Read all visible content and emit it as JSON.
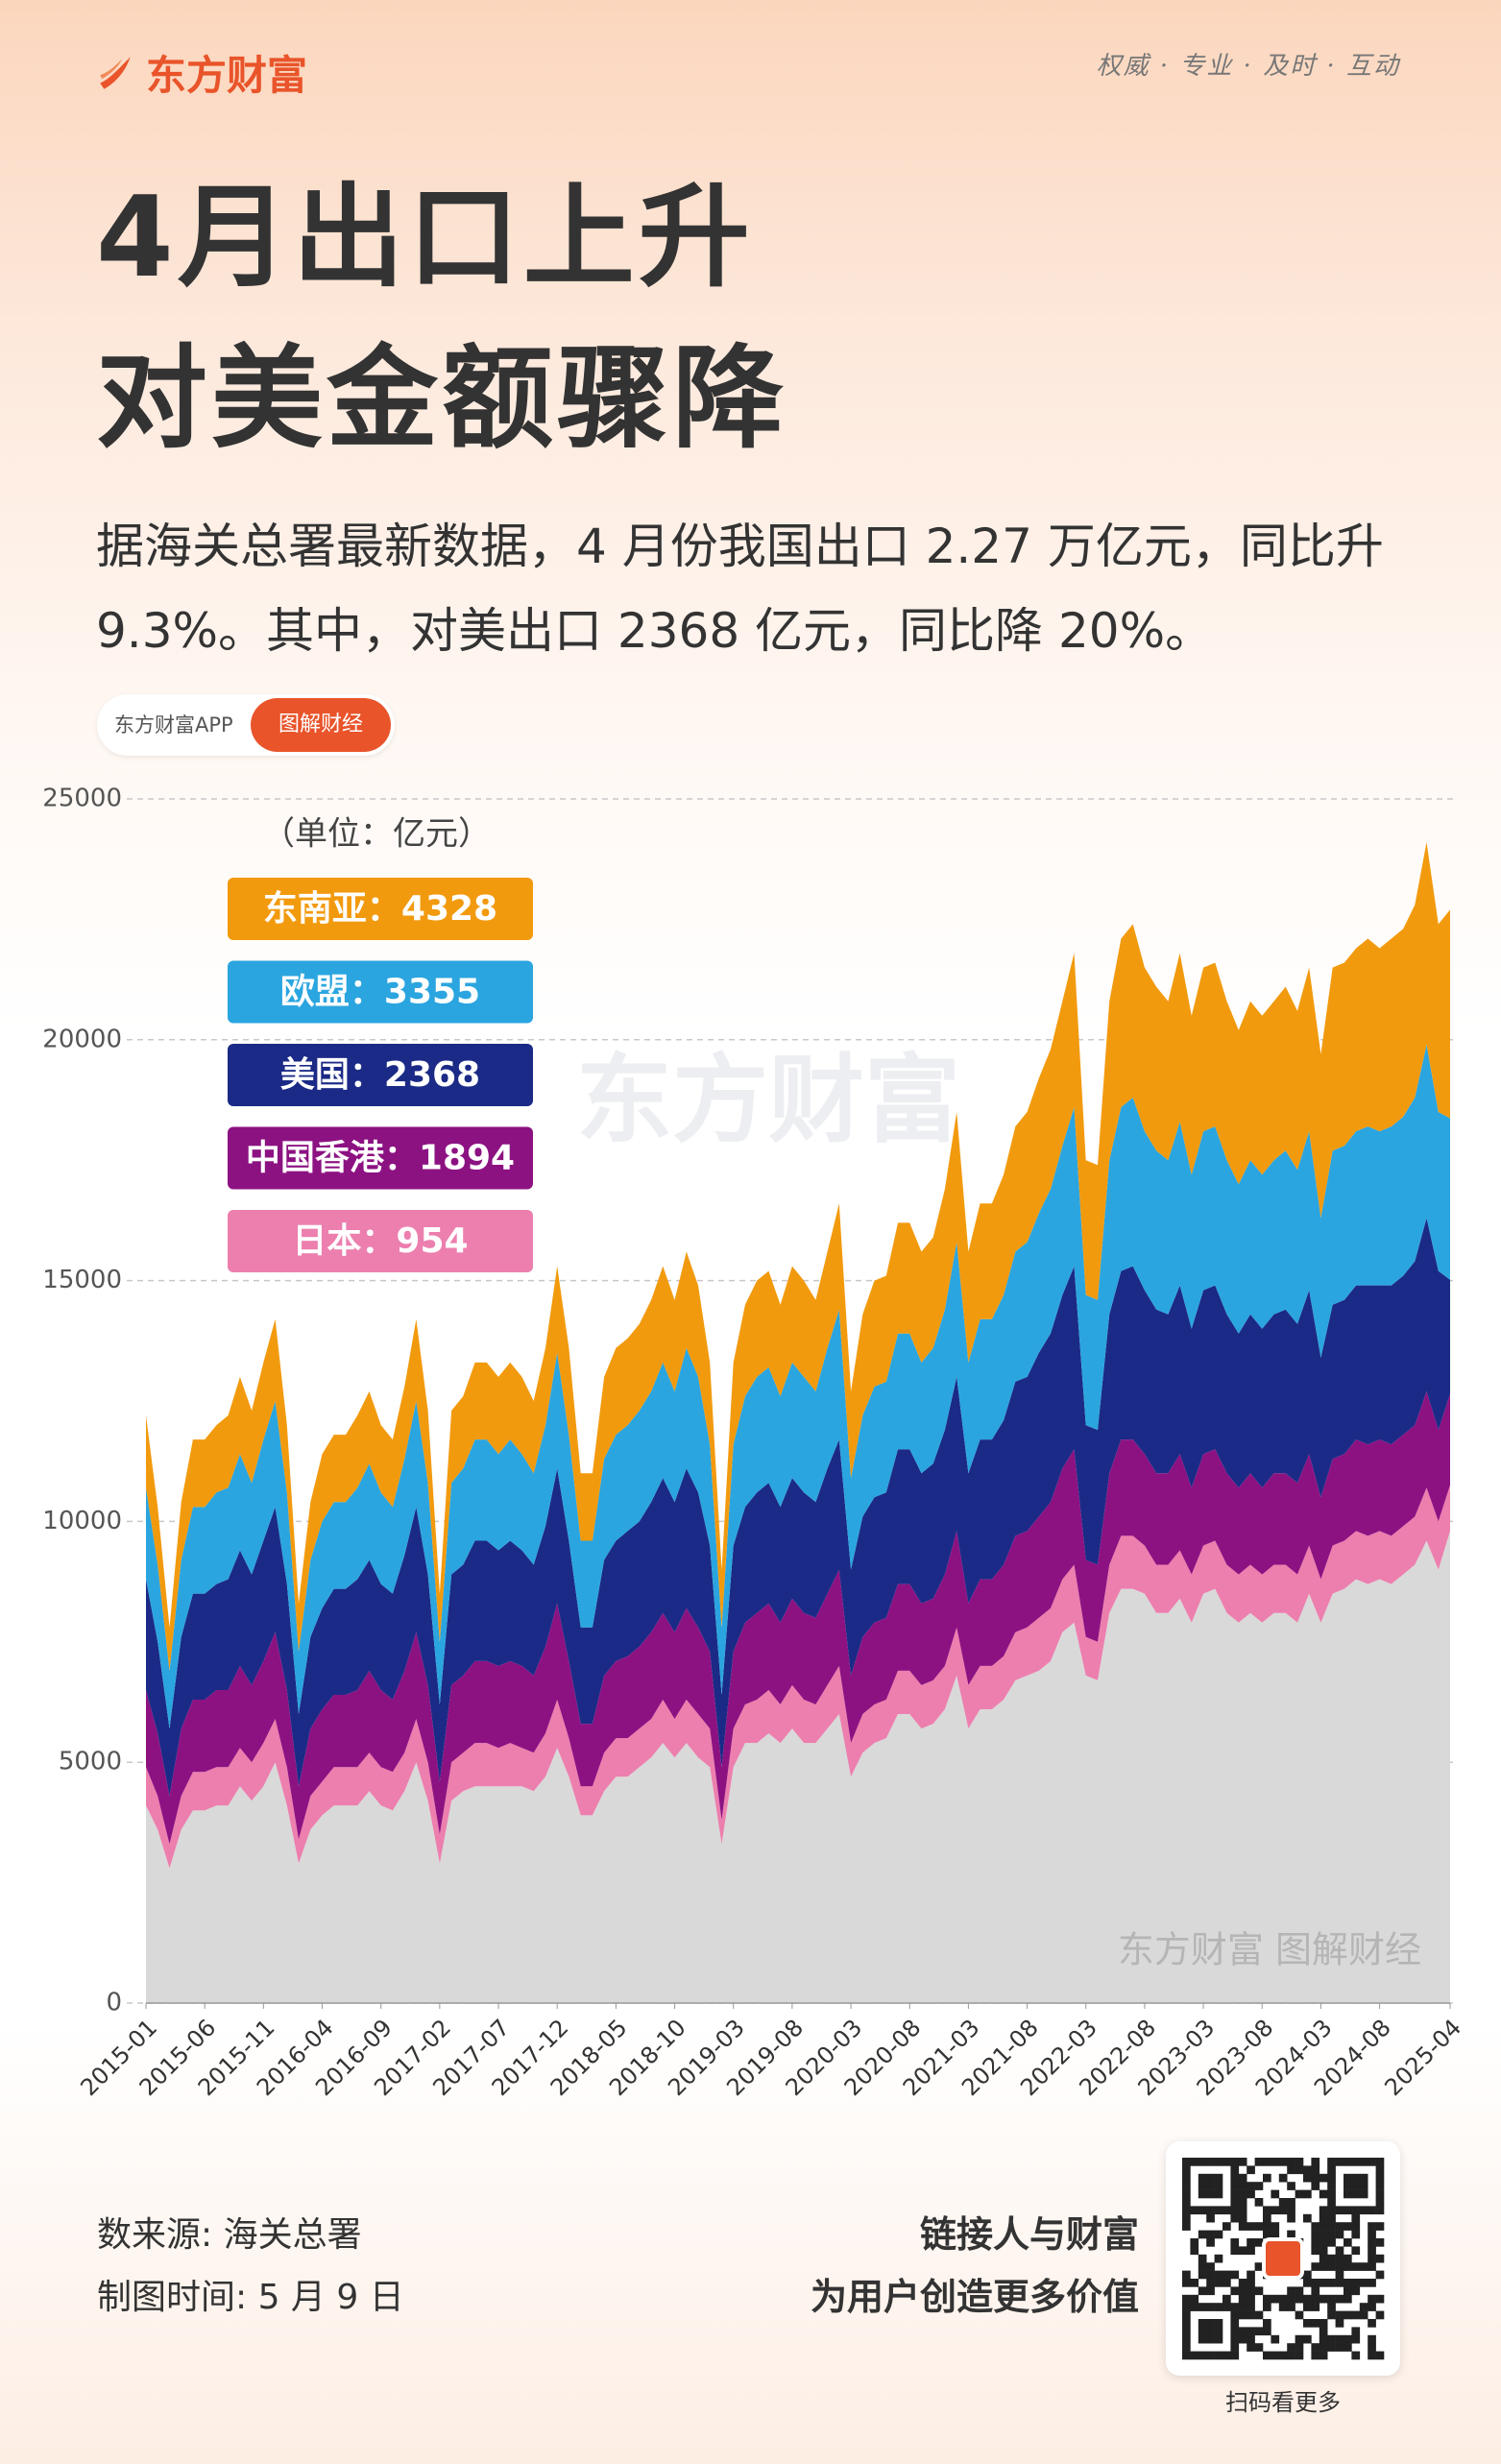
{
  "header": {
    "logo": "东方财富",
    "slogan": "权威 · 专业 · 及时 · 互动"
  },
  "title": [
    "4月出口上升",
    "对美金额骤降"
  ],
  "subtitle": "据海关总署最新数据，4 月份我国出口 2.27 万亿元，同比升 9.3%。其中，对美出口 2368 亿元，同比降 20%。",
  "tags": [
    "东方财富APP",
    "图解财经"
  ],
  "chart_data": {
    "type": "area",
    "stacked": true,
    "unit_label": "（单位：亿元）",
    "watermark": "东方财富",
    "credit": "东方财富 图解财经",
    "grid": true,
    "ylim": [
      0,
      25000
    ],
    "yticks": [
      0,
      5000,
      10000,
      15000,
      20000,
      25000
    ],
    "categories": [
      "2015-01",
      null,
      null,
      null,
      null,
      "2015-06",
      null,
      null,
      null,
      null,
      "2015-11",
      null,
      null,
      null,
      null,
      "2016-04",
      null,
      null,
      null,
      null,
      "2016-09",
      null,
      null,
      null,
      null,
      "2017-02",
      null,
      null,
      null,
      null,
      "2017-07",
      null,
      null,
      null,
      null,
      "2017-12",
      null,
      null,
      null,
      null,
      "2018-05",
      null,
      null,
      null,
      null,
      "2018-10",
      null,
      null,
      null,
      null,
      "2019-03",
      null,
      null,
      null,
      null,
      "2019-08",
      null,
      null,
      null,
      null,
      "2020-03",
      null,
      null,
      null,
      null,
      "2020-08",
      null,
      null,
      null,
      null,
      "2021-03",
      null,
      null,
      null,
      null,
      "2021-08",
      null,
      null,
      null,
      null,
      "2022-03",
      null,
      null,
      null,
      null,
      "2022-08",
      null,
      null,
      null,
      null,
      "2023-03",
      null,
      null,
      null,
      null,
      "2023-08",
      null,
      null,
      null,
      null,
      "2024-03",
      null,
      null,
      null,
      null,
      "2024-08",
      null,
      null,
      null,
      null,
      null,
      "2025-04"
    ],
    "series": [
      {
        "color": "#d9d9d9",
        "values": [
          4100,
          3600,
          2800,
          3600,
          4000,
          4000,
          4100,
          4100,
          4500,
          4200,
          4500,
          5000,
          4100,
          2900,
          3600,
          3900,
          4100,
          4100,
          4100,
          4400,
          4100,
          4000,
          4400,
          5000,
          4200,
          2900,
          4200,
          4400,
          4500,
          4500,
          4500,
          4500,
          4500,
          4400,
          4700,
          5300,
          4700,
          3900,
          3900,
          4400,
          4700,
          4700,
          4900,
          5100,
          5400,
          5100,
          5400,
          5100,
          4900,
          3300,
          4900,
          5400,
          5400,
          5600,
          5400,
          5700,
          5400,
          5400,
          5700,
          6000,
          4700,
          5200,
          5400,
          5500,
          6000,
          6000,
          5700,
          5800,
          6100,
          6800,
          5700,
          6100,
          6100,
          6300,
          6700,
          6800,
          6900,
          7100,
          7700,
          7900,
          6800,
          6700,
          8100,
          8600,
          8600,
          8500,
          8100,
          8100,
          8400,
          7900,
          8500,
          8600,
          8100,
          7900,
          8100,
          7900,
          8100,
          8100,
          7900,
          8500,
          7900,
          8500,
          8600,
          8800,
          8700,
          8800,
          8700,
          8900,
          9100,
          9600,
          9000,
          9801
        ]
      },
      {
        "name": "日本：954",
        "color": "#ec7fae",
        "values": [
          800,
          700,
          500,
          700,
          800,
          800,
          800,
          800,
          800,
          800,
          900,
          900,
          800,
          500,
          700,
          700,
          800,
          800,
          800,
          800,
          800,
          800,
          800,
          900,
          800,
          600,
          800,
          800,
          900,
          900,
          800,
          900,
          800,
          800,
          900,
          1000,
          800,
          600,
          600,
          800,
          800,
          800,
          800,
          800,
          900,
          800,
          900,
          900,
          800,
          500,
          800,
          800,
          900,
          900,
          800,
          900,
          900,
          800,
          900,
          1000,
          700,
          800,
          800,
          800,
          900,
          900,
          900,
          900,
          900,
          1000,
          900,
          900,
          900,
          900,
          1000,
          1000,
          1100,
          1100,
          1100,
          1200,
          800,
          800,
          1000,
          1100,
          1100,
          1000,
          1000,
          1000,
          1000,
          1000,
          1000,
          1000,
          1000,
          1000,
          1000,
          1000,
          1000,
          1000,
          1000,
          1000,
          900,
          1000,
          1000,
          1000,
          1000,
          1000,
          1000,
          1000,
          1000,
          1100,
          1000,
          954
        ]
      },
      {
        "name": "中国香港：1894",
        "color": "#8c1282",
        "values": [
          1600,
          1300,
          1000,
          1400,
          1500,
          1500,
          1600,
          1600,
          1700,
          1600,
          1700,
          1800,
          1600,
          1100,
          1400,
          1500,
          1500,
          1500,
          1600,
          1700,
          1600,
          1500,
          1700,
          1800,
          1600,
          1100,
          1600,
          1600,
          1700,
          1700,
          1700,
          1700,
          1700,
          1600,
          1800,
          2000,
          1600,
          1300,
          1300,
          1600,
          1600,
          1700,
          1700,
          1800,
          1800,
          1800,
          1900,
          1800,
          1600,
          1100,
          1600,
          1700,
          1800,
          1800,
          1700,
          1800,
          1800,
          1800,
          1900,
          2000,
          1400,
          1600,
          1700,
          1700,
          1800,
          1800,
          1700,
          1700,
          1900,
          2000,
          1700,
          1800,
          1800,
          1900,
          2000,
          2000,
          2100,
          2200,
          2300,
          2400,
          1600,
          1600,
          1900,
          2000,
          2000,
          1900,
          1900,
          1900,
          2000,
          1800,
          1900,
          1900,
          1900,
          1800,
          1900,
          1800,
          1900,
          1900,
          1900,
          1900,
          1700,
          1800,
          1800,
          1900,
          1900,
          1900,
          1900,
          1900,
          1900,
          2000,
          1900,
          1894
        ]
      },
      {
        "name": "美国：2368",
        "color": "#1b2a86",
        "values": [
          2300,
          1900,
          1400,
          1900,
          2200,
          2200,
          2200,
          2300,
          2400,
          2300,
          2500,
          2600,
          2200,
          1500,
          1900,
          2100,
          2200,
          2200,
          2300,
          2300,
          2200,
          2200,
          2400,
          2600,
          2300,
          1600,
          2300,
          2300,
          2500,
          2500,
          2400,
          2500,
          2400,
          2300,
          2500,
          2800,
          2500,
          2000,
          2000,
          2400,
          2500,
          2600,
          2600,
          2700,
          2800,
          2700,
          2900,
          2800,
          2200,
          1500,
          2200,
          2400,
          2500,
          2500,
          2400,
          2500,
          2500,
          2400,
          2600,
          2700,
          2200,
          2500,
          2600,
          2600,
          2800,
          2800,
          2700,
          2800,
          3000,
          3200,
          2700,
          2900,
          2900,
          3000,
          3200,
          3200,
          3400,
          3500,
          3600,
          3800,
          2800,
          2800,
          3300,
          3500,
          3600,
          3400,
          3400,
          3300,
          3500,
          3300,
          3400,
          3400,
          3300,
          3200,
          3300,
          3300,
          3300,
          3400,
          3300,
          3400,
          2900,
          3200,
          3200,
          3200,
          3300,
          3200,
          3300,
          3300,
          3400,
          3600,
          3300,
          2368
        ]
      },
      {
        "name": "欧盟：3355",
        "color": "#2ba5df",
        "values": [
          1900,
          1600,
          1200,
          1600,
          1800,
          1800,
          1900,
          1900,
          2000,
          1900,
          2100,
          2200,
          1900,
          1300,
          1600,
          1800,
          1800,
          1800,
          1900,
          2000,
          1900,
          1800,
          2000,
          2200,
          1900,
          1300,
          1900,
          2000,
          2100,
          2100,
          2000,
          2100,
          2000,
          1900,
          2100,
          2400,
          2200,
          1800,
          1800,
          2100,
          2200,
          2200,
          2300,
          2300,
          2400,
          2300,
          2500,
          2400,
          2100,
          1400,
          2100,
          2300,
          2400,
          2400,
          2300,
          2400,
          2400,
          2300,
          2500,
          2700,
          1900,
          2100,
          2300,
          2300,
          2400,
          2400,
          2300,
          2400,
          2500,
          2800,
          2300,
          2500,
          2500,
          2600,
          2700,
          2800,
          2900,
          3000,
          3100,
          3300,
          2700,
          2700,
          3200,
          3400,
          3500,
          3300,
          3300,
          3200,
          3400,
          3200,
          3300,
          3300,
          3200,
          3100,
          3200,
          3200,
          3200,
          3300,
          3200,
          3300,
          2900,
          3200,
          3200,
          3200,
          3300,
          3200,
          3300,
          3300,
          3400,
          3600,
          3300,
          3355
        ]
      },
      {
        "name": "东南亚：4328",
        "color": "#f29a0e",
        "values": [
          1500,
          1200,
          900,
          1200,
          1400,
          1400,
          1400,
          1500,
          1600,
          1500,
          1600,
          1700,
          1400,
          1000,
          1200,
          1400,
          1400,
          1400,
          1500,
          1500,
          1400,
          1400,
          1500,
          1700,
          1500,
          1000,
          1500,
          1500,
          1600,
          1600,
          1600,
          1600,
          1600,
          1500,
          1600,
          1800,
          1800,
          1400,
          1400,
          1700,
          1800,
          1800,
          1800,
          1900,
          2000,
          1900,
          2000,
          1900,
          1700,
          1200,
          1700,
          1900,
          2000,
          2000,
          1900,
          2000,
          2000,
          1900,
          2000,
          2200,
          1800,
          2100,
          2200,
          2200,
          2300,
          2300,
          2300,
          2300,
          2500,
          2700,
          2300,
          2400,
          2400,
          2500,
          2600,
          2700,
          2800,
          2900,
          3000,
          3200,
          2800,
          2800,
          3300,
          3500,
          3600,
          3400,
          3400,
          3300,
          3500,
          3300,
          3400,
          3400,
          3300,
          3200,
          3300,
          3300,
          3300,
          3400,
          3300,
          3400,
          3400,
          3800,
          3800,
          3800,
          3900,
          3800,
          3900,
          3900,
          4000,
          4200,
          3900,
          4328
        ]
      }
    ]
  },
  "footer": {
    "source": "数来源: 海关总署",
    "date": "制图时间: 5 月 9 日",
    "slogan": [
      "链接人与财富",
      "为用户创造更多价值"
    ],
    "qr_caption": "扫码看更多"
  }
}
